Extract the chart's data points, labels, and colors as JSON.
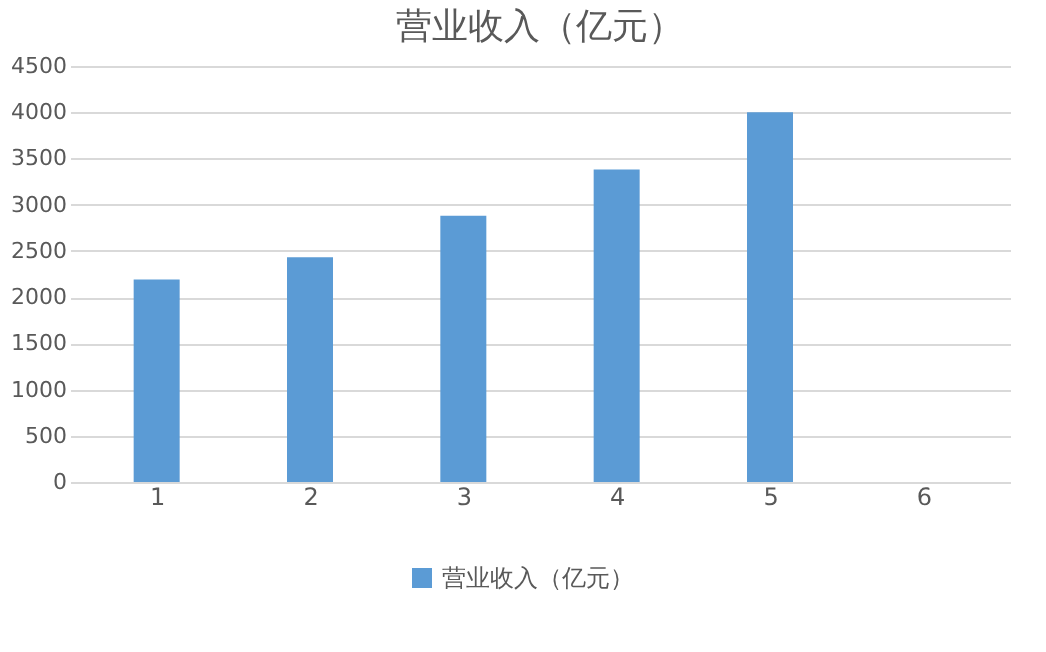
{
  "chart_data": {
    "type": "bar",
    "title": "营业收入（亿元）",
    "categories": [
      "1",
      "2",
      "3",
      "4",
      "5",
      "6"
    ],
    "series": [
      {
        "name": "营业收入（亿元）",
        "color": "#5b9bd5",
        "values": [
          2190,
          2430,
          2880,
          3380,
          4000,
          null
        ]
      }
    ],
    "ylim": [
      0,
      4500
    ],
    "yticks": [
      0,
      500,
      1000,
      1500,
      2000,
      2500,
      3000,
      3500,
      4000,
      4500
    ],
    "grid": "y",
    "legend": "bottom"
  }
}
